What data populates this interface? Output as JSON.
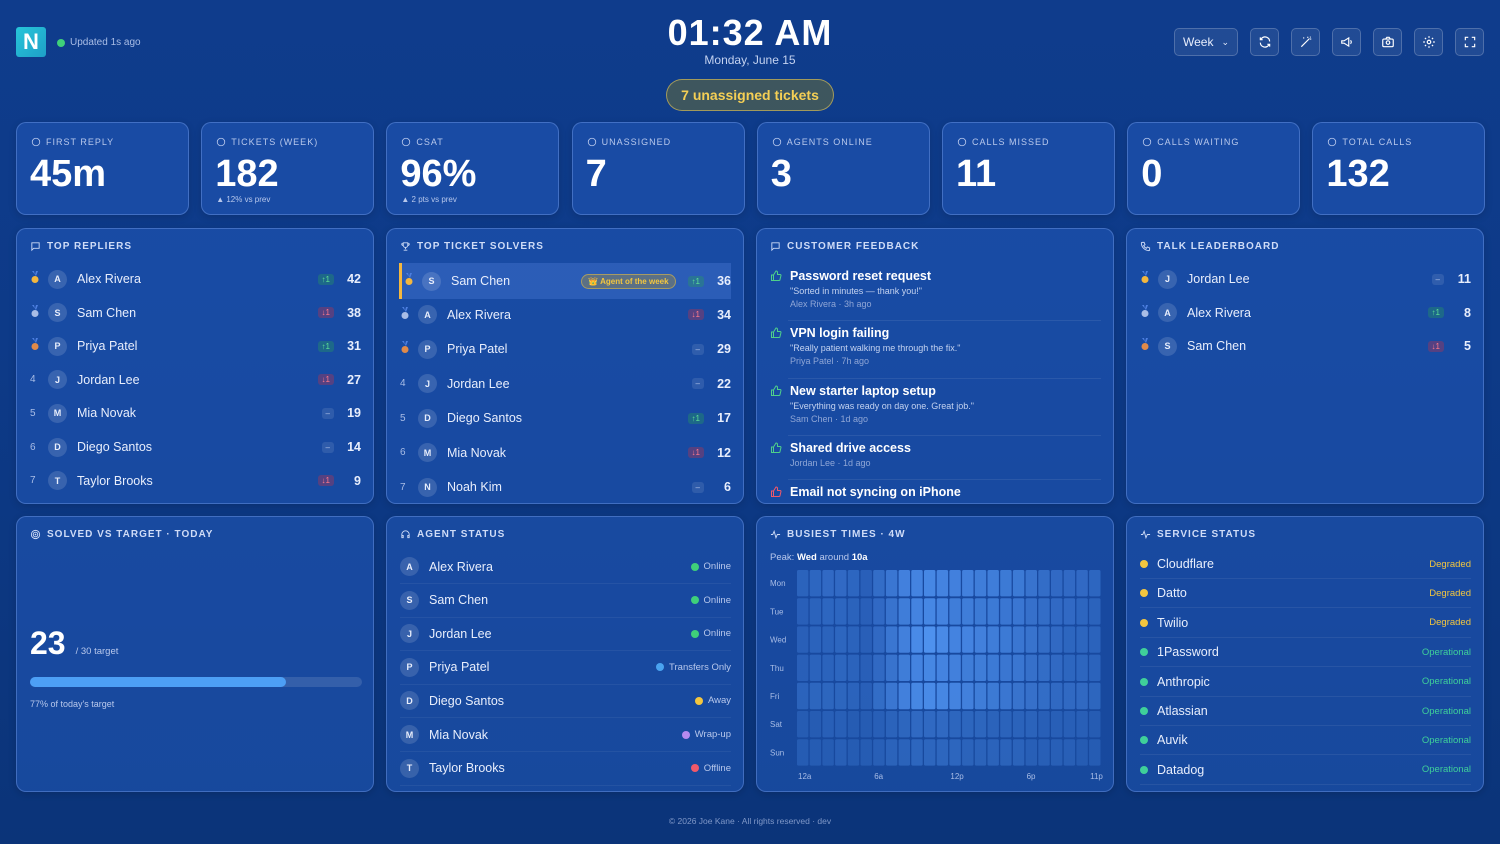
{
  "header": {
    "logo": "N",
    "updated": "Updated 1s ago",
    "time": "01:32 AM",
    "date": "Monday, June 15",
    "unassigned_pill": "7 unassigned tickets",
    "range_select": "Week",
    "icons": [
      "refresh-icon",
      "magic-wand-icon",
      "megaphone-icon",
      "camera-icon",
      "gear-icon",
      "fullscreen-icon"
    ]
  },
  "stats": [
    {
      "label": "FIRST REPLY",
      "value": "45m",
      "sub": "",
      "icon": "clock-icon"
    },
    {
      "label": "TICKETS (WEEK)",
      "value": "182",
      "sub": "▲ 12% vs prev",
      "icon": "ticket-icon"
    },
    {
      "label": "CSAT",
      "value": "96%",
      "sub": "▲ 2 pts vs prev",
      "icon": "star-icon"
    },
    {
      "label": "UNASSIGNED",
      "value": "7",
      "sub": "",
      "icon": "user-icon"
    },
    {
      "label": "AGENTS ONLINE",
      "value": "3",
      "sub": "",
      "icon": "users-icon"
    },
    {
      "label": "CALLS MISSED",
      "value": "11",
      "sub": "",
      "icon": "phone-missed-icon"
    },
    {
      "label": "CALLS WAITING",
      "value": "0",
      "sub": "",
      "icon": "phone-wait-icon"
    },
    {
      "label": "TOTAL CALLS",
      "value": "132",
      "sub": "",
      "icon": "phone-icon"
    }
  ],
  "top_repliers": {
    "title": "TOP REPLIERS",
    "rows": [
      {
        "rank": "",
        "medal": "gold",
        "initial": "A",
        "name": "Alex Rivera",
        "delta": "↑1",
        "dir": "up",
        "score": "42"
      },
      {
        "rank": "",
        "medal": "silver",
        "initial": "S",
        "name": "Sam Chen",
        "delta": "↓1",
        "dir": "down",
        "score": "38"
      },
      {
        "rank": "",
        "medal": "bronze",
        "initial": "P",
        "name": "Priya Patel",
        "delta": "↑1",
        "dir": "up",
        "score": "31"
      },
      {
        "rank": "4",
        "medal": "",
        "initial": "J",
        "name": "Jordan Lee",
        "delta": "↓1",
        "dir": "down",
        "score": "27"
      },
      {
        "rank": "5",
        "medal": "",
        "initial": "M",
        "name": "Mia Novak",
        "delta": "–",
        "dir": "flat",
        "score": "19"
      },
      {
        "rank": "6",
        "medal": "",
        "initial": "D",
        "name": "Diego Santos",
        "delta": "–",
        "dir": "flat",
        "score": "14"
      },
      {
        "rank": "7",
        "medal": "",
        "initial": "T",
        "name": "Taylor Brooks",
        "delta": "↓1",
        "dir": "down",
        "score": "9"
      }
    ]
  },
  "top_solvers": {
    "title": "TOP TICKET SOLVERS",
    "badge": "👑 Agent of the week",
    "rows": [
      {
        "rank": "",
        "medal": "gold",
        "initial": "S",
        "name": "Sam Chen",
        "delta": "↑1",
        "dir": "up",
        "score": "36"
      },
      {
        "rank": "",
        "medal": "silver",
        "initial": "A",
        "name": "Alex Rivera",
        "delta": "↓1",
        "dir": "down",
        "score": "34"
      },
      {
        "rank": "",
        "medal": "bronze",
        "initial": "P",
        "name": "Priya Patel",
        "delta": "–",
        "dir": "flat",
        "score": "29"
      },
      {
        "rank": "4",
        "medal": "",
        "initial": "J",
        "name": "Jordan Lee",
        "delta": "–",
        "dir": "flat",
        "score": "22"
      },
      {
        "rank": "5",
        "medal": "",
        "initial": "D",
        "name": "Diego Santos",
        "delta": "↑1",
        "dir": "up",
        "score": "17"
      },
      {
        "rank": "6",
        "medal": "",
        "initial": "M",
        "name": "Mia Novak",
        "delta": "↓1",
        "dir": "down",
        "score": "12"
      },
      {
        "rank": "7",
        "medal": "",
        "initial": "N",
        "name": "Noah Kim",
        "delta": "–",
        "dir": "flat",
        "score": "6"
      }
    ]
  },
  "feedback": {
    "title": "CUSTOMER FEEDBACK",
    "items": [
      {
        "title": "Password reset request",
        "quote": "\"Sorted in minutes — thank you!\"",
        "meta": "Alex Rivera · 3h ago",
        "icon": "thumbs-up-icon"
      },
      {
        "title": "VPN login failing",
        "quote": "\"Really patient walking me through the fix.\"",
        "meta": "Priya Patel · 7h ago",
        "icon": "thumbs-up-icon"
      },
      {
        "title": "New starter laptop setup",
        "quote": "\"Everything was ready on day one. Great job.\"",
        "meta": "Sam Chen · 1d ago",
        "icon": "thumbs-up-icon"
      },
      {
        "title": "Shared drive access",
        "quote": "",
        "meta": "Jordan Lee · 1d ago",
        "icon": "thumbs-up-icon"
      },
      {
        "title": "Email not syncing on iPhone",
        "quote": "",
        "meta": "",
        "icon": "thumbs-down-icon"
      }
    ]
  },
  "talk": {
    "title": "TALK LEADERBOARD",
    "rows": [
      {
        "medal": "gold",
        "initial": "J",
        "name": "Jordan Lee",
        "delta": "–",
        "dir": "flat",
        "score": "11"
      },
      {
        "medal": "silver",
        "initial": "A",
        "name": "Alex Rivera",
        "delta": "↑1",
        "dir": "up",
        "score": "8"
      },
      {
        "medal": "bronze",
        "initial": "S",
        "name": "Sam Chen",
        "delta": "↓1",
        "dir": "down",
        "score": "5"
      }
    ]
  },
  "solved": {
    "title": "SOLVED VS TARGET · TODAY",
    "value": "23",
    "target": "/ 30 target",
    "progress": 0.77,
    "caption": "77% of today's target"
  },
  "agent_status": {
    "title": "AGENT STATUS",
    "rows": [
      {
        "initial": "A",
        "name": "Alex Rivera",
        "status": "Online",
        "color": "#3fd07a"
      },
      {
        "initial": "S",
        "name": "Sam Chen",
        "status": "Online",
        "color": "#3fd07a"
      },
      {
        "initial": "J",
        "name": "Jordan Lee",
        "status": "Online",
        "color": "#3fd07a"
      },
      {
        "initial": "P",
        "name": "Priya Patel",
        "status": "Transfers Only",
        "color": "#4aa3f0"
      },
      {
        "initial": "D",
        "name": "Diego Santos",
        "status": "Away",
        "color": "#f3c63f"
      },
      {
        "initial": "M",
        "name": "Mia Novak",
        "status": "Wrap-up",
        "color": "#b58af0"
      },
      {
        "initial": "T",
        "name": "Taylor Brooks",
        "status": "Offline",
        "color": "#f0596a"
      }
    ]
  },
  "busiest": {
    "title": "BUSIEST TIMES · 4W",
    "peak_prefix": "Peak:",
    "peak_day": "Wed",
    "peak_mid": "around",
    "peak_time": "10a",
    "days": [
      "Mon",
      "Tue",
      "Wed",
      "Thu",
      "Fri",
      "Sat",
      "Sun"
    ],
    "hour_labels": [
      "12a",
      "6a",
      "12p",
      "6p",
      "11p"
    ],
    "intensity": [
      [
        0.2,
        0.25,
        0.3,
        0.3,
        0.25,
        0.15,
        0.35,
        0.5,
        0.65,
        0.7,
        0.75,
        0.7,
        0.65,
        0.65,
        0.6,
        0.6,
        0.55,
        0.55,
        0.45,
        0.35,
        0.3,
        0.3,
        0.3,
        0.25
      ],
      [
        0.15,
        0.2,
        0.25,
        0.25,
        0.2,
        0.15,
        0.3,
        0.45,
        0.6,
        0.7,
        0.75,
        0.7,
        0.6,
        0.6,
        0.55,
        0.55,
        0.5,
        0.5,
        0.4,
        0.35,
        0.3,
        0.3,
        0.25,
        0.2
      ],
      [
        0.15,
        0.2,
        0.2,
        0.25,
        0.2,
        0.15,
        0.3,
        0.5,
        0.65,
        0.8,
        0.9,
        0.8,
        0.7,
        0.7,
        0.65,
        0.6,
        0.55,
        0.5,
        0.45,
        0.35,
        0.3,
        0.25,
        0.25,
        0.2
      ],
      [
        0.15,
        0.2,
        0.2,
        0.25,
        0.2,
        0.15,
        0.3,
        0.45,
        0.6,
        0.7,
        0.75,
        0.7,
        0.65,
        0.6,
        0.6,
        0.55,
        0.5,
        0.5,
        0.4,
        0.35,
        0.3,
        0.25,
        0.25,
        0.2
      ],
      [
        0.2,
        0.25,
        0.25,
        0.25,
        0.2,
        0.15,
        0.35,
        0.5,
        0.65,
        0.75,
        0.8,
        0.75,
        0.7,
        0.65,
        0.6,
        0.55,
        0.5,
        0.45,
        0.4,
        0.35,
        0.3,
        0.3,
        0.3,
        0.25
      ],
      [
        0.1,
        0.1,
        0.15,
        0.15,
        0.1,
        0.1,
        0.15,
        0.2,
        0.25,
        0.3,
        0.3,
        0.3,
        0.25,
        0.25,
        0.25,
        0.2,
        0.2,
        0.2,
        0.2,
        0.15,
        0.15,
        0.15,
        0.15,
        0.1
      ],
      [
        0.1,
        0.1,
        0.1,
        0.15,
        0.1,
        0.1,
        0.15,
        0.2,
        0.2,
        0.25,
        0.25,
        0.25,
        0.25,
        0.2,
        0.2,
        0.2,
        0.2,
        0.2,
        0.15,
        0.15,
        0.15,
        0.15,
        0.1,
        0.1
      ]
    ]
  },
  "services": {
    "title": "SERVICE STATUS",
    "rows": [
      {
        "name": "Cloudflare",
        "status": "Degraded",
        "color": "#f3c63f"
      },
      {
        "name": "Datto",
        "status": "Degraded",
        "color": "#f3c63f"
      },
      {
        "name": "Twilio",
        "status": "Degraded",
        "color": "#f3c63f"
      },
      {
        "name": "1Password",
        "status": "Operational",
        "color": "#3fd09a"
      },
      {
        "name": "Anthropic",
        "status": "Operational",
        "color": "#3fd09a"
      },
      {
        "name": "Atlassian",
        "status": "Operational",
        "color": "#3fd09a"
      },
      {
        "name": "Auvik",
        "status": "Operational",
        "color": "#3fd09a"
      },
      {
        "name": "Datadog",
        "status": "Operational",
        "color": "#3fd09a"
      }
    ]
  },
  "footer": "© 2026 Joe Kane · All rights reserved · dev",
  "colors": {
    "accent": "#4d9ff5",
    "gold": "#f3b73f",
    "silver": "#a9bde6",
    "bronze": "#e08a4a"
  }
}
